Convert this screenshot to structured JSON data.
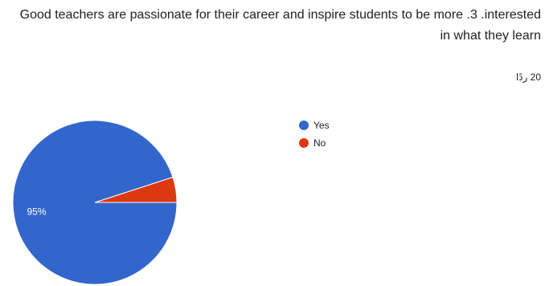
{
  "question": {
    "title": "Good teachers are passionate for their career and inspire students to be more .3 .interested in what they learn",
    "response_count": "20 ردًا"
  },
  "colors": {
    "yes": "#3366cc",
    "no": "#dc3912"
  },
  "chart_data": {
    "type": "pie",
    "categories": [
      "Yes",
      "No"
    ],
    "values": [
      95,
      5
    ],
    "data_labels": [
      "95%",
      ""
    ],
    "legend_position": "right",
    "title": ""
  }
}
